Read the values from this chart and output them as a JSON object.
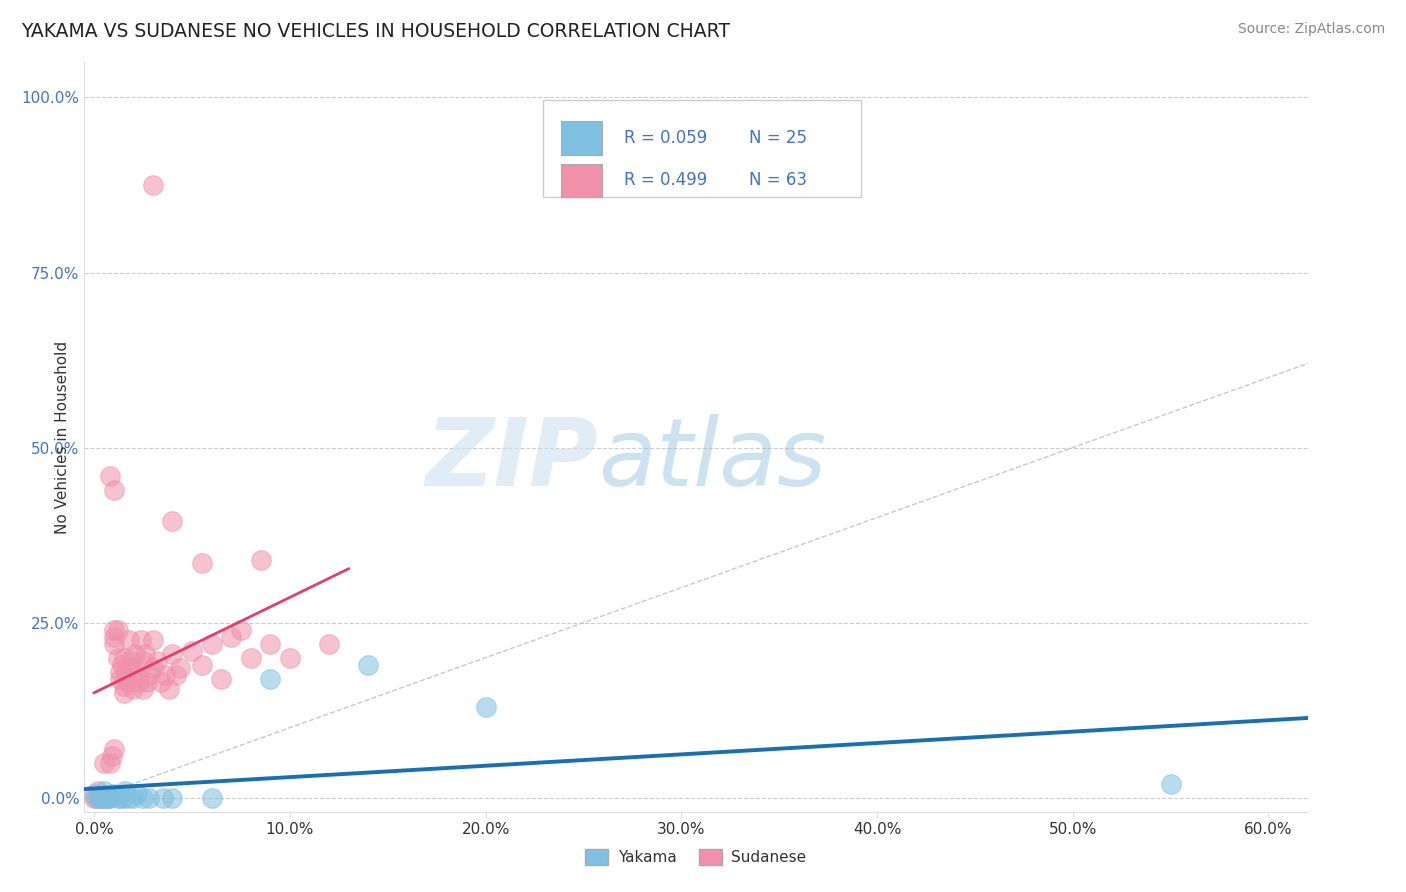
{
  "title": "YAKAMA VS SUDANESE NO VEHICLES IN HOUSEHOLD CORRELATION CHART",
  "source": "Source: ZipAtlas.com",
  "ylabel": "No Vehicles in Household",
  "xlim": [
    -0.005,
    0.62
  ],
  "ylim": [
    -0.02,
    1.05
  ],
  "xlabel_vals": [
    0.0,
    0.1,
    0.2,
    0.3,
    0.4,
    0.5,
    0.6
  ],
  "xlabel_labels": [
    "0.0%",
    "10.0%",
    "20.0%",
    "30.0%",
    "40.0%",
    "50.0%",
    "60.0%"
  ],
  "ylabel_vals": [
    0.0,
    0.25,
    0.5,
    0.75,
    1.0
  ],
  "ylabel_labels": [
    "0.0%",
    "25.0%",
    "50.0%",
    "75.0%",
    "100.0%"
  ],
  "diag_line_color": "#bbbbbb",
  "background_color": "#ffffff",
  "yakama_color": "#7fbfdf",
  "sudanese_color": "#f090aa",
  "yakama_line_color": "#1a6faf",
  "sudanese_line_color": "#e04070",
  "legend_r_yakama": "R = 0.059",
  "legend_n_yakama": "N = 25",
  "legend_r_sudanese": "R = 0.499",
  "legend_n_sudanese": "N = 63",
  "yakama_points": [
    [
      0.0,
      0.005
    ],
    [
      0.002,
      0.0
    ],
    [
      0.003,
      0.0
    ],
    [
      0.004,
      0.0
    ],
    [
      0.005,
      0.01
    ],
    [
      0.006,
      0.0
    ],
    [
      0.007,
      0.0
    ],
    [
      0.008,
      0.0
    ],
    [
      0.01,
      0.005
    ],
    [
      0.012,
      0.0
    ],
    [
      0.013,
      0.0
    ],
    [
      0.015,
      0.0
    ],
    [
      0.016,
      0.01
    ],
    [
      0.018,
      0.0
    ],
    [
      0.02,
      0.0
    ],
    [
      0.022,
      0.005
    ],
    [
      0.025,
      0.0
    ],
    [
      0.028,
      0.0
    ],
    [
      0.035,
      0.0
    ],
    [
      0.04,
      0.0
    ],
    [
      0.06,
      0.0
    ],
    [
      0.09,
      0.17
    ],
    [
      0.14,
      0.19
    ],
    [
      0.2,
      0.13
    ],
    [
      0.55,
      0.02
    ]
  ],
  "sudanese_points": [
    [
      0.0,
      0.0
    ],
    [
      0.001,
      0.0
    ],
    [
      0.002,
      0.01
    ],
    [
      0.003,
      0.0
    ],
    [
      0.004,
      0.0
    ],
    [
      0.005,
      0.05
    ],
    [
      0.006,
      0.0
    ],
    [
      0.007,
      0.0
    ],
    [
      0.008,
      0.05
    ],
    [
      0.009,
      0.06
    ],
    [
      0.01,
      0.07
    ],
    [
      0.01,
      0.22
    ],
    [
      0.01,
      0.23
    ],
    [
      0.01,
      0.24
    ],
    [
      0.01,
      0.44
    ],
    [
      0.012,
      0.2
    ],
    [
      0.013,
      0.18
    ],
    [
      0.013,
      0.17
    ],
    [
      0.014,
      0.19
    ],
    [
      0.015,
      0.15
    ],
    [
      0.015,
      0.16
    ],
    [
      0.015,
      0.2
    ],
    [
      0.016,
      0.175
    ],
    [
      0.017,
      0.165
    ],
    [
      0.018,
      0.185
    ],
    [
      0.018,
      0.225
    ],
    [
      0.019,
      0.195
    ],
    [
      0.02,
      0.155
    ],
    [
      0.02,
      0.185
    ],
    [
      0.021,
      0.205
    ],
    [
      0.022,
      0.175
    ],
    [
      0.023,
      0.165
    ],
    [
      0.024,
      0.225
    ],
    [
      0.025,
      0.155
    ],
    [
      0.025,
      0.195
    ],
    [
      0.026,
      0.205
    ],
    [
      0.027,
      0.165
    ],
    [
      0.028,
      0.175
    ],
    [
      0.03,
      0.225
    ],
    [
      0.03,
      0.185
    ],
    [
      0.032,
      0.195
    ],
    [
      0.034,
      0.165
    ],
    [
      0.036,
      0.175
    ],
    [
      0.038,
      0.155
    ],
    [
      0.04,
      0.205
    ],
    [
      0.042,
      0.175
    ],
    [
      0.044,
      0.185
    ],
    [
      0.05,
      0.21
    ],
    [
      0.055,
      0.19
    ],
    [
      0.06,
      0.22
    ],
    [
      0.065,
      0.17
    ],
    [
      0.07,
      0.23
    ],
    [
      0.075,
      0.24
    ],
    [
      0.08,
      0.2
    ],
    [
      0.085,
      0.34
    ],
    [
      0.09,
      0.22
    ],
    [
      0.1,
      0.2
    ],
    [
      0.12,
      0.22
    ],
    [
      0.03,
      0.875
    ],
    [
      0.04,
      0.395
    ],
    [
      0.055,
      0.335
    ],
    [
      0.008,
      0.46
    ],
    [
      0.012,
      0.24
    ]
  ]
}
